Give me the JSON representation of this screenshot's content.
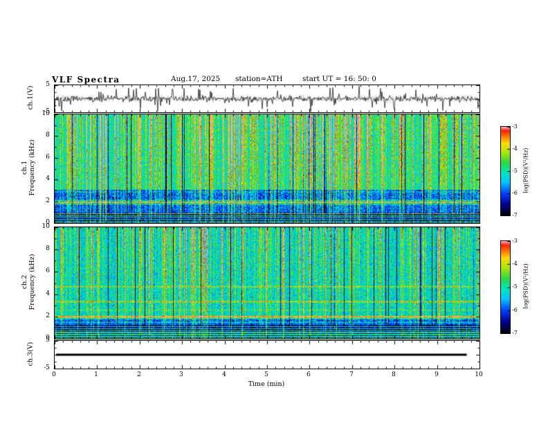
{
  "header": {
    "title": "VLF  Spectra",
    "date": "Aug.17, 2025",
    "station": "station=ATH",
    "start_ut": "start UT  =   16: 50: 0"
  },
  "xaxis": {
    "label": "Time (min)",
    "range": [
      0,
      10
    ],
    "ticks": [
      "0",
      "1",
      "2",
      "3",
      "4",
      "5",
      "6",
      "7",
      "8",
      "9",
      "10"
    ]
  },
  "colorbar": {
    "label": "log(PSD)(V²/Hz)",
    "range": [
      -7,
      -3
    ],
    "ticks": [
      "-3",
      "-4",
      "-5",
      "-6",
      "-7"
    ],
    "stops": [
      [
        0,
        "#000000"
      ],
      [
        0.13,
        "#000090"
      ],
      [
        0.25,
        "#0040ff"
      ],
      [
        0.38,
        "#00c8ff"
      ],
      [
        0.5,
        "#00e8b0"
      ],
      [
        0.6,
        "#30d840"
      ],
      [
        0.72,
        "#b0e800"
      ],
      [
        0.82,
        "#ffd800"
      ],
      [
        0.9,
        "#ff7000"
      ],
      [
        0.96,
        "#ff2000"
      ],
      [
        1,
        "#ffaab8"
      ]
    ]
  },
  "panels": {
    "wave1": {
      "ylabel": "ch.1(V)",
      "ylim": [
        -5,
        5
      ],
      "yticks": [
        "5",
        "-5"
      ]
    },
    "spec1": {
      "ylabel_line1": "ch.1",
      "ylabel_line2": "Frequency (kHz)",
      "ylim": [
        0,
        10
      ],
      "yticks": [
        "10",
        "8",
        "6",
        "4",
        "2",
        "0"
      ]
    },
    "spec2": {
      "ylabel_line1": "ch.2",
      "ylabel_line2": "Frequency (kHz)",
      "ylim": [
        0,
        10
      ],
      "yticks": [
        "10",
        "8",
        "6",
        "4",
        "2",
        "0"
      ]
    },
    "wave3": {
      "ylabel": "ch.3(V)",
      "ylim": [
        -5,
        5
      ],
      "yticks": [
        "5",
        "-5"
      ]
    }
  },
  "chart_data": [
    {
      "id": "wave1",
      "type": "line",
      "desc": "ch.1 broadband VLF voltage, noisy with sferic spikes",
      "xlim": [
        0,
        10
      ],
      "ylim": [
        -5,
        5
      ],
      "seed": 7,
      "noise_v": 0.5,
      "spike_prob": 0.12,
      "spike_v": 3.6,
      "data_end": 1.0
    },
    {
      "id": "spec1",
      "type": "heatmap",
      "desc": "ch.1 spectrogram 0-10 kHz, vertical sferic bursts, power-line harmonic near 2 kHz, striped band below 1 kHz",
      "xlim": [
        0,
        10
      ],
      "flim": [
        0,
        10
      ],
      "vlim": [
        -7,
        -3
      ],
      "seed": 11,
      "base_high": -5.0,
      "base_mid": -6.0,
      "mid_band": [
        1.0,
        3.1
      ],
      "col_spike_pow": 5,
      "col_spike_amp": 3.4,
      "col_spike2_prob": 0.35,
      "col_spike2_amp": 1.4,
      "dark_col_prob": 0.05,
      "bottom_band": 1.0,
      "bottom_period": 0.17,
      "hlines": [
        {
          "f": 1.95,
          "amp": 2.4,
          "w": 0.07
        },
        {
          "f": 1.78,
          "amp": 1.1,
          "w": 0.05
        },
        {
          "f": 2.12,
          "amp": 1.0,
          "w": 0.05
        },
        {
          "f": 0.9,
          "amp": 0.9,
          "w": 0.04
        },
        {
          "f": 2.9,
          "amp": 0.6,
          "w": 0.05
        }
      ],
      "data_end": 1.0
    },
    {
      "id": "spec2",
      "type": "heatmap",
      "desc": "ch.2 spectrogram 0-10 kHz, mostly green with yellow harmonic lines near 2.0, 3.35 and 4.7 kHz, striped band below ~1.3 kHz",
      "xlim": [
        0,
        10
      ],
      "flim": [
        0,
        10
      ],
      "vlim": [
        -7,
        -3
      ],
      "seed": 23,
      "base_high": -5.2,
      "base_mid": -6.0,
      "mid_band": [
        0.8,
        1.8
      ],
      "col_spike_pow": 7,
      "col_spike_amp": 2.8,
      "col_spike2_prob": 0.3,
      "col_spike2_amp": 1.1,
      "dark_col_prob": 0.04,
      "bottom_band": 1.3,
      "bottom_period": 0.18,
      "hlines": [
        {
          "f": 2.0,
          "amp": 2.2,
          "w": 0.07
        },
        {
          "f": 3.35,
          "amp": 1.3,
          "w": 0.06
        },
        {
          "f": 4.7,
          "amp": 1.0,
          "w": 0.06
        },
        {
          "f": 1.5,
          "amp": 0.8,
          "w": 0.05
        },
        {
          "f": 2.6,
          "amp": 0.6,
          "w": 0.05
        }
      ],
      "data_end": 1.0
    },
    {
      "id": "wave3",
      "type": "line",
      "desc": "ch.3 flat trace at 0 V ending near 9.7 min",
      "xlim": [
        0,
        10
      ],
      "ylim": [
        -5,
        5
      ],
      "flat": 0,
      "data_end": 0.97
    }
  ]
}
